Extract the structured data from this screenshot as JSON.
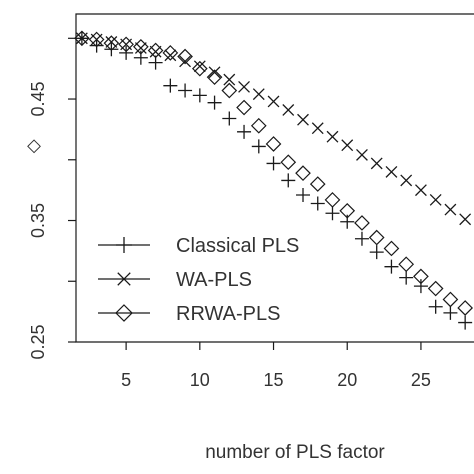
{
  "chart_data": {
    "type": "scatter",
    "xlabel": "number of PLS factor",
    "ylabel_glyph": "◇",
    "xlim": [
      1.6,
      28.6
    ],
    "ylim": [
      0.25,
      0.52
    ],
    "xticks": [
      5,
      10,
      15,
      20,
      25
    ],
    "xtick_labels": [
      "5",
      "10",
      "15",
      "20",
      "25"
    ],
    "yticks": [
      0.25,
      0.3,
      0.35,
      0.4,
      0.45,
      0.5
    ],
    "ytick_labels": [
      "0.25",
      "",
      "0.35",
      "",
      "0.45",
      ""
    ],
    "legend_position": "bottom-left",
    "series": [
      {
        "name": "Classical PLS",
        "marker": "plus",
        "x": [
          2,
          3,
          4,
          5,
          6,
          7,
          8,
          9,
          10,
          11,
          12,
          13,
          14,
          15,
          16,
          17,
          18,
          19,
          20,
          21,
          22,
          23,
          24,
          25,
          26,
          27,
          28
        ],
        "y": [
          0.5,
          0.494,
          0.491,
          0.488,
          0.484,
          0.48,
          0.461,
          0.457,
          0.453,
          0.447,
          0.434,
          0.423,
          0.411,
          0.397,
          0.383,
          0.371,
          0.364,
          0.356,
          0.349,
          0.335,
          0.324,
          0.312,
          0.303,
          0.296,
          0.279,
          0.274,
          0.266
        ]
      },
      {
        "name": "WA-PLS",
        "marker": "x",
        "x": [
          2,
          3,
          4,
          5,
          6,
          7,
          8,
          9,
          10,
          11,
          12,
          13,
          14,
          15,
          16,
          17,
          18,
          19,
          20,
          21,
          22,
          23,
          24,
          25,
          26,
          27,
          28
        ],
        "y": [
          0.5,
          0.499,
          0.497,
          0.495,
          0.492,
          0.489,
          0.486,
          0.481,
          0.477,
          0.472,
          0.466,
          0.46,
          0.454,
          0.448,
          0.441,
          0.433,
          0.426,
          0.419,
          0.412,
          0.404,
          0.397,
          0.39,
          0.383,
          0.375,
          0.367,
          0.359,
          0.351
        ]
      },
      {
        "name": "RRWA-PLS",
        "marker": "diamond",
        "x": [
          2,
          3,
          4,
          5,
          6,
          7,
          8,
          9,
          10,
          11,
          12,
          13,
          14,
          15,
          16,
          17,
          18,
          19,
          20,
          21,
          22,
          23,
          24,
          25,
          26,
          27,
          28
        ],
        "y": [
          0.5,
          0.499,
          0.496,
          0.495,
          0.493,
          0.49,
          0.488,
          0.485,
          0.475,
          0.468,
          0.457,
          0.443,
          0.428,
          0.413,
          0.398,
          0.389,
          0.38,
          0.367,
          0.358,
          0.348,
          0.336,
          0.327,
          0.314,
          0.304,
          0.294,
          0.285,
          0.278
        ]
      }
    ]
  }
}
